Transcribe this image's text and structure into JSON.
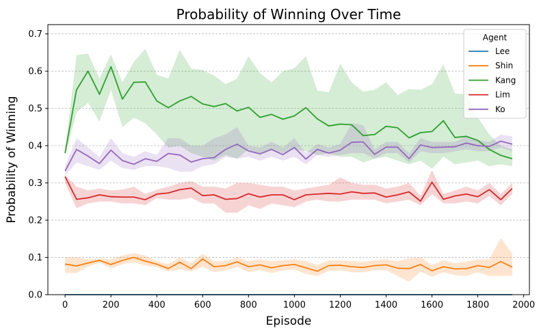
{
  "chart_data": {
    "type": "line",
    "title": "Probability of Winning Over Time",
    "xlabel": "Episode",
    "ylabel": "Probability of Winning",
    "xlim": [
      -75,
      2025
    ],
    "ylim": [
      0,
      0.725
    ],
    "xticks": [
      0,
      200,
      400,
      600,
      800,
      1000,
      1200,
      1400,
      1600,
      1800,
      2000
    ],
    "yticks": [
      0.0,
      0.1,
      0.2,
      0.3,
      0.4,
      0.5,
      0.6,
      0.7
    ],
    "grid": "horizontal dashed",
    "legend_title": "Agent",
    "legend_position": "top-right",
    "x": [
      0,
      50,
      100,
      150,
      200,
      250,
      300,
      350,
      400,
      450,
      500,
      550,
      600,
      650,
      700,
      750,
      800,
      850,
      900,
      950,
      1000,
      1050,
      1100,
      1150,
      1200,
      1250,
      1300,
      1350,
      1400,
      1450,
      1500,
      1550,
      1600,
      1650,
      1700,
      1750,
      1800,
      1850,
      1900,
      1950
    ],
    "series": [
      {
        "name": "Lee",
        "color": "#1f77b4",
        "values": [
          0,
          0,
          0,
          0,
          0,
          0,
          0,
          0,
          0,
          0,
          0,
          0,
          0,
          0,
          0,
          0,
          0,
          0,
          0,
          0,
          0,
          0,
          0,
          0,
          0,
          0,
          0,
          0,
          0,
          0,
          0,
          0,
          0,
          0,
          0,
          0,
          0,
          0,
          0,
          0
        ],
        "lower": [
          0,
          0,
          0,
          0,
          0,
          0,
          0,
          0,
          0,
          0,
          0,
          0,
          0,
          0,
          0,
          0,
          0,
          0,
          0,
          0,
          0,
          0,
          0,
          0,
          0,
          0,
          0,
          0,
          0,
          0,
          0,
          0,
          0,
          0,
          0,
          0,
          0,
          0,
          0,
          0
        ],
        "upper": [
          0,
          0,
          0,
          0,
          0,
          0,
          0,
          0,
          0,
          0,
          0,
          0,
          0,
          0,
          0,
          0,
          0,
          0,
          0,
          0,
          0,
          0,
          0,
          0,
          0,
          0,
          0,
          0,
          0,
          0,
          0,
          0,
          0,
          0,
          0,
          0,
          0,
          0,
          0,
          0
        ]
      },
      {
        "name": "Shin",
        "color": "#ff7f0e",
        "values": [
          0.082,
          0.077,
          0.085,
          0.092,
          0.081,
          0.092,
          0.1,
          0.09,
          0.082,
          0.07,
          0.087,
          0.07,
          0.096,
          0.075,
          0.078,
          0.088,
          0.075,
          0.08,
          0.072,
          0.078,
          0.081,
          0.072,
          0.063,
          0.078,
          0.079,
          0.075,
          0.073,
          0.078,
          0.08,
          0.071,
          0.07,
          0.081,
          0.064,
          0.075,
          0.069,
          0.07,
          0.078,
          0.073,
          0.089,
          0.074
        ],
        "lower": [
          0.058,
          0.058,
          0.075,
          0.086,
          0.07,
          0.082,
          0.087,
          0.078,
          0.074,
          0.062,
          0.068,
          0.062,
          0.075,
          0.06,
          0.065,
          0.075,
          0.06,
          0.066,
          0.058,
          0.065,
          0.068,
          0.056,
          0.05,
          0.064,
          0.065,
          0.06,
          0.06,
          0.065,
          0.066,
          0.05,
          0.035,
          0.062,
          0.048,
          0.06,
          0.052,
          0.05,
          0.06,
          0.05,
          0.05,
          0.05
        ],
        "upper": [
          0.1,
          0.1,
          0.095,
          0.097,
          0.095,
          0.105,
          0.112,
          0.105,
          0.09,
          0.082,
          0.1,
          0.085,
          0.11,
          0.09,
          0.09,
          0.1,
          0.09,
          0.095,
          0.09,
          0.092,
          0.095,
          0.09,
          0.08,
          0.092,
          0.092,
          0.09,
          0.088,
          0.092,
          0.095,
          0.09,
          0.098,
          0.1,
          0.08,
          0.092,
          0.085,
          0.088,
          0.095,
          0.095,
          0.152,
          0.11
        ]
      },
      {
        "name": "Kang",
        "color": "#2ca02c",
        "values": [
          0.38,
          0.55,
          0.6,
          0.538,
          0.612,
          0.525,
          0.57,
          0.571,
          0.52,
          0.502,
          0.52,
          0.532,
          0.512,
          0.505,
          0.513,
          0.493,
          0.503,
          0.476,
          0.484,
          0.471,
          0.48,
          0.502,
          0.472,
          0.453,
          0.458,
          0.456,
          0.427,
          0.43,
          0.452,
          0.448,
          0.421,
          0.435,
          0.438,
          0.467,
          0.422,
          0.425,
          0.414,
          0.39,
          0.374,
          0.365
        ],
        "lower": [
          0.372,
          0.49,
          0.515,
          0.465,
          0.55,
          0.45,
          0.475,
          0.46,
          0.43,
          0.395,
          0.4,
          0.38,
          0.37,
          0.36,
          0.375,
          0.365,
          0.39,
          0.375,
          0.39,
          0.38,
          0.39,
          0.385,
          0.375,
          0.38,
          0.37,
          0.37,
          0.355,
          0.365,
          0.37,
          0.36,
          0.35,
          0.36,
          0.338,
          0.37,
          0.35,
          0.355,
          0.36,
          0.345,
          0.35,
          0.345
        ],
        "upper": [
          0.388,
          0.643,
          0.647,
          0.58,
          0.645,
          0.57,
          0.625,
          0.66,
          0.59,
          0.58,
          0.657,
          0.607,
          0.603,
          0.588,
          0.565,
          0.58,
          0.64,
          0.595,
          0.57,
          0.6,
          0.608,
          0.64,
          0.548,
          0.543,
          0.62,
          0.57,
          0.545,
          0.55,
          0.57,
          0.536,
          0.552,
          0.55,
          0.565,
          0.618,
          0.54,
          0.538,
          0.476,
          0.43,
          0.4,
          0.39
        ]
      },
      {
        "name": "Lim",
        "color": "#d62728",
        "values": [
          0.317,
          0.256,
          0.26,
          0.268,
          0.263,
          0.262,
          0.262,
          0.255,
          0.27,
          0.273,
          0.282,
          0.286,
          0.266,
          0.268,
          0.256,
          0.258,
          0.271,
          0.262,
          0.268,
          0.268,
          0.255,
          0.268,
          0.27,
          0.272,
          0.27,
          0.276,
          0.272,
          0.273,
          0.262,
          0.268,
          0.276,
          0.251,
          0.302,
          0.256,
          0.265,
          0.27,
          0.263,
          0.282,
          0.255,
          0.285
        ],
        "lower": [
          0.3,
          0.232,
          0.245,
          0.25,
          0.25,
          0.245,
          0.245,
          0.24,
          0.26,
          0.255,
          0.255,
          0.26,
          0.245,
          0.245,
          0.22,
          0.22,
          0.24,
          0.23,
          0.245,
          0.24,
          0.235,
          0.25,
          0.255,
          0.25,
          0.25,
          0.255,
          0.255,
          0.255,
          0.245,
          0.25,
          0.255,
          0.24,
          0.27,
          0.245,
          0.245,
          0.25,
          0.245,
          0.265,
          0.24,
          0.27
        ],
        "upper": [
          0.322,
          0.29,
          0.28,
          0.285,
          0.28,
          0.282,
          0.29,
          0.27,
          0.282,
          0.29,
          0.3,
          0.305,
          0.29,
          0.29,
          0.285,
          0.3,
          0.3,
          0.295,
          0.29,
          0.29,
          0.28,
          0.285,
          0.29,
          0.295,
          0.315,
          0.3,
          0.295,
          0.295,
          0.285,
          0.29,
          0.3,
          0.265,
          0.335,
          0.27,
          0.28,
          0.29,
          0.28,
          0.3,
          0.27,
          0.3
        ]
      },
      {
        "name": "Ko",
        "color": "#9467bd",
        "values": [
          0.332,
          0.39,
          0.372,
          0.352,
          0.388,
          0.36,
          0.35,
          0.365,
          0.358,
          0.379,
          0.375,
          0.356,
          0.365,
          0.368,
          0.39,
          0.404,
          0.386,
          0.378,
          0.39,
          0.376,
          0.395,
          0.364,
          0.39,
          0.38,
          0.388,
          0.409,
          0.41,
          0.377,
          0.396,
          0.396,
          0.365,
          0.402,
          0.395,
          0.396,
          0.397,
          0.407,
          0.4,
          0.398,
          0.412,
          0.404
        ],
        "lower": [
          0.32,
          0.355,
          0.345,
          0.335,
          0.36,
          0.34,
          0.335,
          0.345,
          0.345,
          0.34,
          0.33,
          0.33,
          0.345,
          0.35,
          0.37,
          0.365,
          0.37,
          0.36,
          0.37,
          0.36,
          0.37,
          0.35,
          0.375,
          0.37,
          0.375,
          0.38,
          0.38,
          0.365,
          0.38,
          0.38,
          0.355,
          0.385,
          0.38,
          0.38,
          0.385,
          0.39,
          0.385,
          0.385,
          0.395,
          0.385
        ],
        "upper": [
          0.345,
          0.42,
          0.395,
          0.37,
          0.42,
          0.38,
          0.37,
          0.385,
          0.375,
          0.42,
          0.42,
          0.4,
          0.4,
          0.42,
          0.43,
          0.45,
          0.4,
          0.395,
          0.41,
          0.395,
          0.42,
          0.38,
          0.405,
          0.395,
          0.405,
          0.46,
          0.455,
          0.39,
          0.41,
          0.41,
          0.38,
          0.42,
          0.41,
          0.41,
          0.41,
          0.425,
          0.415,
          0.41,
          0.43,
          0.425
        ]
      }
    ]
  }
}
